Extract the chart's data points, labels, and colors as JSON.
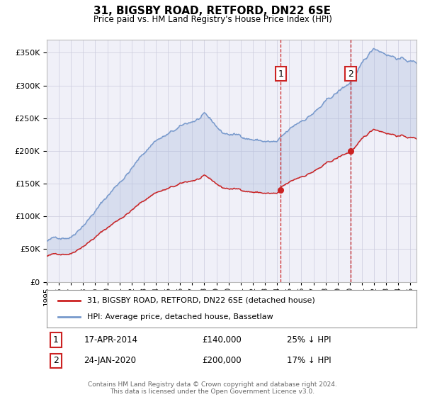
{
  "title": "31, BIGSBY ROAD, RETFORD, DN22 6SE",
  "subtitle": "Price paid vs. HM Land Registry's House Price Index (HPI)",
  "ylim": [
    0,
    370000
  ],
  "xlim_start": 1995.0,
  "xlim_end": 2025.5,
  "hpi_color": "#7799cc",
  "price_color": "#cc2222",
  "sale1_year": 2014.3,
  "sale1_price": 140000,
  "sale2_year": 2020.07,
  "sale2_price": 200000,
  "annotation1_date": "17-APR-2014",
  "annotation1_price": "£140,000",
  "annotation1_hpi": "25% ↓ HPI",
  "annotation2_date": "24-JAN-2020",
  "annotation2_price": "£200,000",
  "annotation2_hpi": "17% ↓ HPI",
  "legend_house_label": "31, BIGSBY ROAD, RETFORD, DN22 6SE (detached house)",
  "legend_hpi_label": "HPI: Average price, detached house, Bassetlaw",
  "footer": "Contains HM Land Registry data © Crown copyright and database right 2024.\nThis data is licensed under the Open Government Licence v3.0.",
  "background_color": "#ffffff",
  "plot_bg_color": "#f0f0f8",
  "grid_color": "#ccccdd",
  "fill_color": "#aabbdd"
}
